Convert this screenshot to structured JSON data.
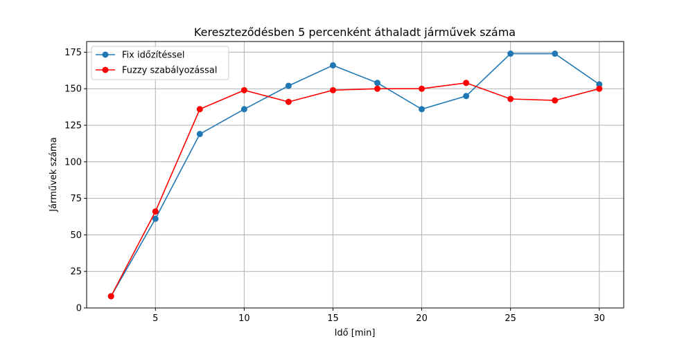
{
  "chart_data": {
    "type": "line",
    "title": "Kereszteződésben 5 percenként áthaladt járművek száma",
    "xlabel": "Idő [min]",
    "ylabel": "Járművek száma",
    "xlim": [
      1.125,
      31.375
    ],
    "ylim": [
      0,
      182.3
    ],
    "xticks": [
      5,
      10,
      15,
      20,
      25,
      30
    ],
    "yticks": [
      0,
      25,
      50,
      75,
      100,
      125,
      150,
      175
    ],
    "grid": true,
    "legend_position": "upper-left",
    "x": [
      2.5,
      5,
      7.5,
      10,
      12.5,
      15,
      17.5,
      20,
      22.5,
      25,
      27.5,
      30
    ],
    "series": [
      {
        "name": "Fix időzítéssel",
        "color": "#1f77b4",
        "values": [
          8,
          61,
          119,
          136,
          152,
          166,
          154,
          136,
          145,
          174,
          174,
          153
        ]
      },
      {
        "name": "Fuzzy szabályozással",
        "color": "#ff0000",
        "values": [
          8,
          66,
          136,
          149,
          141,
          149,
          150,
          150,
          154,
          143,
          142,
          150
        ]
      }
    ]
  }
}
